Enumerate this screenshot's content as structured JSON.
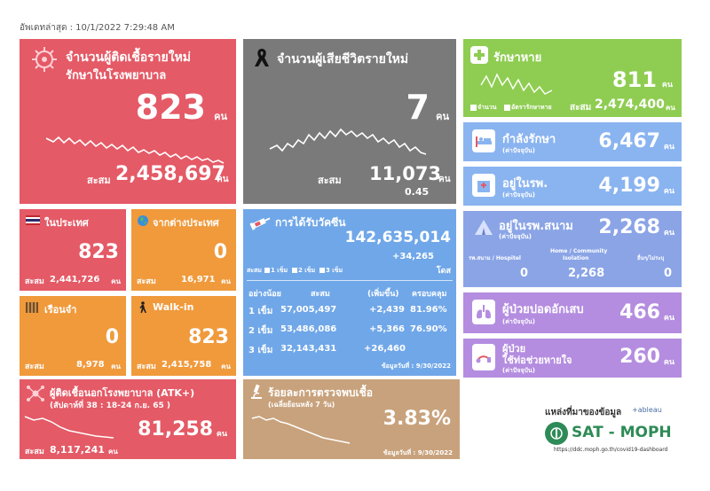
{
  "updated": "อัพเดทล่าสุด : 10/1/2022 7:29:48 AM",
  "colors": {
    "new_cases": "#e45a66",
    "deaths": "#7a7a7a",
    "recovered": "#8fcd52",
    "blue_light": "#8ab4f0",
    "vaccine": "#70a7e8",
    "thai": "#e45a66",
    "foreign": "#f09a3c",
    "prison": "#f09a3c",
    "walkin": "#f09a3c",
    "field": "#8aa4e6",
    "pneumonia": "#b48de0",
    "ventilator": "#b48de0",
    "atk": "#e45a66",
    "positivity": "#c8a27c"
  },
  "new_cases": {
    "title1": "จำนวนผู้ติดเชื้อรายใหม่",
    "title2": "รักษาในโรงพยาบาล",
    "value": "823",
    "unit": "คน",
    "total_label": "สะสม",
    "total": "2,458,697",
    "total_unit": "คน",
    "icon": "virus-icon"
  },
  "deaths": {
    "title": "จำนวนผู้เสียชีวิตรายใหม่",
    "value": "7",
    "unit": "คน",
    "total_label": "สะสม",
    "total": "11,073",
    "total_unit": "คน",
    "rate": "0.45",
    "icon": "ribbon-icon"
  },
  "recovered": {
    "title": "รักษาหาย",
    "value": "811",
    "unit": "คน",
    "legend1": "จำนวน",
    "legend2": "อัตรารักษาหาย",
    "total_label": "สะสม",
    "total": "2,474,400",
    "total_unit": "คน",
    "icon": "medical-cross-icon"
  },
  "treating": {
    "title": "กำลังรักษา",
    "sub": "(ค่าปัจจุบัน)",
    "value": "6,467",
    "unit": "คน",
    "icon": "hospital-bed-icon"
  },
  "in_hospital": {
    "title": "อยู่ในรพ.",
    "sub": "(ค่าปัจจุบัน)",
    "value": "4,199",
    "unit": "คน",
    "icon": "hospital-icon"
  },
  "thai": {
    "title": "ในประเทศ",
    "value": "823",
    "total_label": "สะสม",
    "total": "2,441,726",
    "total_unit": "คน",
    "icon": "thai-flag-icon"
  },
  "foreign": {
    "title": "จากต่างประเทศ",
    "value": "0",
    "total_label": "สะสม",
    "total": "16,971",
    "total_unit": "คน",
    "icon": "globe-icon"
  },
  "vaccine": {
    "title": "การได้รับวัคซีน",
    "total": "142,635,014",
    "delta": "+34,265",
    "unit": "โดส",
    "legend_prefix": "สะสม",
    "legend": [
      "1 เข็ม",
      "2 เข็ม",
      "3 เข็ม"
    ],
    "headers": [
      "อย่างน้อย",
      "สะสม",
      "(เพิ่มขึ้น)",
      "ครอบคลุม"
    ],
    "rows": [
      [
        "1 เข็ม",
        "57,005,497",
        "+2,439",
        "81.96%"
      ],
      [
        "2 เข็ม",
        "53,486,086",
        "+5,366",
        "76.90%"
      ],
      [
        "3 เข็ม",
        "32,143,431",
        "+26,460",
        ""
      ]
    ],
    "asof": "ข้อมูลวันที่ : 9/30/2022",
    "icon": "syringe-icon"
  },
  "field": {
    "title": "อยู่ในรพ.สนาม",
    "sub": "(ค่าปัจจุบัน)",
    "value": "2,268",
    "unit": "คน",
    "col1": "รพ.สนาม / Hospitel",
    "col2a": "Home / Community",
    "col2b": "Isolation",
    "col3": "อื่นๆ/ไม่ระบุ",
    "v1": "0",
    "v2": "2,268",
    "v3": "0",
    "icon": "tent-icon"
  },
  "prison": {
    "title": "เรือนจำ",
    "value": "0",
    "total_label": "สะสม",
    "total": "8,978",
    "total_unit": "คน",
    "icon": "jail-icon"
  },
  "walkin": {
    "title": "Walk-in",
    "value": "823",
    "total_label": "สะสม",
    "total": "2,415,758",
    "total_unit": "คน",
    "icon": "walking-person-icon"
  },
  "pneumonia": {
    "title": "ผู้ป่วยปอดอักเสบ",
    "sub": "(ค่าปัจจุบัน)",
    "value": "466",
    "unit": "คน",
    "icon": "lungs-icon"
  },
  "ventilator": {
    "title1": "ผู้ป่วย",
    "title2": "ใช้ท่อช่วยหายใจ",
    "sub": "(ค่าปัจจุบัน)",
    "value": "260",
    "unit": "คน",
    "icon": "ventilator-icon"
  },
  "atk": {
    "title": "ผู้ติดเชื้อนอกโรงพยาบาล (ATK+)",
    "week": "(สัปดาห์ที่  38 : 18-24 ก.ย. 65      )",
    "value": "81,258",
    "unit": "คน",
    "total_label": "สะสม",
    "total": "8,117,241",
    "total_unit": "คน",
    "icon": "atk-network-icon"
  },
  "positivity": {
    "title": "ร้อยละการตรวจพบเชื้อ",
    "sub": "(เฉลี่ยย้อนหลัง 7 วัน)",
    "value": "3.83%",
    "asof": "ข้อมูลวันที่ : 9/30/2022",
    "icon": "microscope-icon"
  },
  "source": {
    "label": "แหล่งที่มาของข้อมูล",
    "tableau": "+ableau",
    "brand": "SAT - MOPH",
    "url": "https://ddc.moph.go.th/covid19-dashboard"
  }
}
